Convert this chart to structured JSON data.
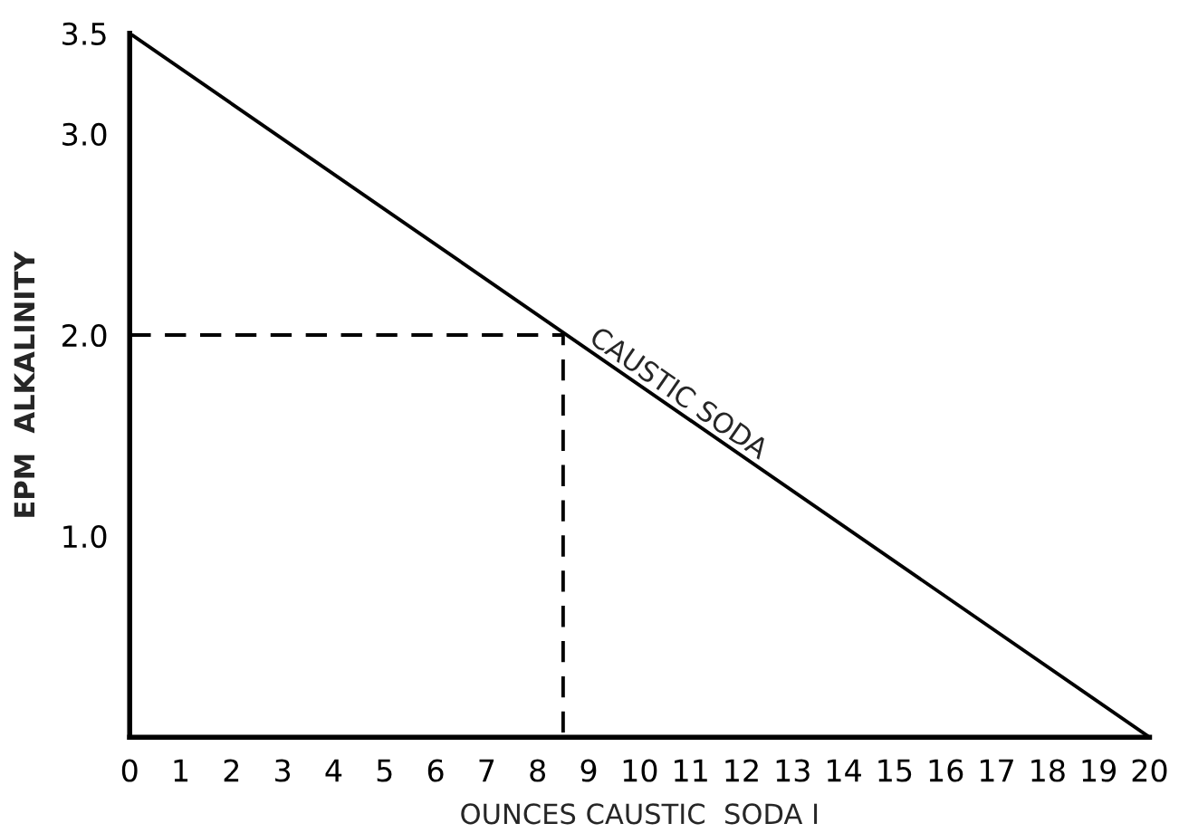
{
  "chart_data": {
    "type": "line",
    "xlabel": "OUNCES CAUSTIC  SODA I",
    "ylabel": "EPM  ALKALINITY",
    "xlim": [
      0,
      20
    ],
    "ylim": [
      0,
      3.5
    ],
    "xticks": [
      0,
      1,
      2,
      3,
      4,
      5,
      6,
      7,
      8,
      9,
      10,
      11,
      12,
      13,
      14,
      15,
      16,
      17,
      18,
      19,
      20
    ],
    "yticks": [
      {
        "value": 1.0,
        "label": "1.0"
      },
      {
        "value": 2.0,
        "label": "2.0"
      },
      {
        "value": 3.0,
        "label": "3.0"
      },
      {
        "value": 3.5,
        "label": "3.5"
      }
    ],
    "series": [
      {
        "color": "#000000",
        "x": [
          0,
          20
        ],
        "values": [
          3.5,
          0
        ],
        "line_style": "solid"
      },
      {
        "color": "#000000",
        "x": [
          0,
          8.5,
          8.5
        ],
        "values": [
          2.0,
          2.0,
          0
        ],
        "line_style": "dashed"
      }
    ],
    "annotations": [
      {
        "text": "CAUSTIC SODA",
        "x": 10.6,
        "y": 1.65
      }
    ],
    "grid": false,
    "legend": false
  }
}
